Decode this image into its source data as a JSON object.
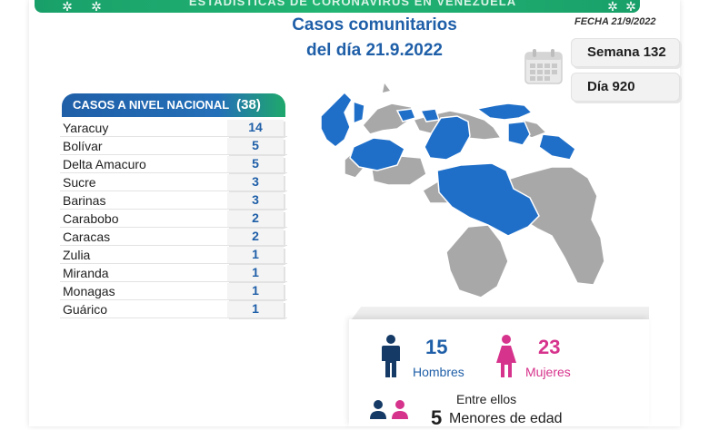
{
  "header": {
    "banner_title": "ESTADÍSTICAS DE CORONAVIRUS EN VENEZUELA",
    "fecha": "FECHA 21/9/2022",
    "title_line1": "Casos comunitarios",
    "title_line2": "del día 21.9.2022",
    "semana": "Semana 132",
    "dia": "Día 920"
  },
  "table": {
    "title": "CASOS A NIVEL NACIONAL",
    "total": "(38)",
    "rows": [
      {
        "name": "Yaracuy",
        "value": "14"
      },
      {
        "name": "Bolívar",
        "value": "5"
      },
      {
        "name": "Delta Amacuro",
        "value": "5"
      },
      {
        "name": "Sucre",
        "value": "3"
      },
      {
        "name": "Barinas",
        "value": "3"
      },
      {
        "name": "Carabobo",
        "value": "2"
      },
      {
        "name": "Caracas",
        "value": "2"
      },
      {
        "name": "Zulia",
        "value": "1"
      },
      {
        "name": "Miranda",
        "value": "1"
      },
      {
        "name": "Monagas",
        "value": "1"
      },
      {
        "name": "Guárico",
        "value": "1"
      }
    ]
  },
  "stats": {
    "hombres_num": "15",
    "hombres_label": "Hombres",
    "mujeres_num": "23",
    "mujeres_label": "Mujeres",
    "entre_ellos": "Entre ellos",
    "menores_num": "5",
    "menores_label": "Menores de edad"
  },
  "colors": {
    "blue": "#1f5fa8",
    "green": "#1fa86c",
    "pink": "#d6338c",
    "map_blue": "#1f6fc9",
    "map_gray": "#a8a8a8",
    "navy": "#153a66"
  },
  "icons": [
    "calendar-icon",
    "male-icon",
    "female-icon",
    "child-icon",
    "virus-icon"
  ]
}
